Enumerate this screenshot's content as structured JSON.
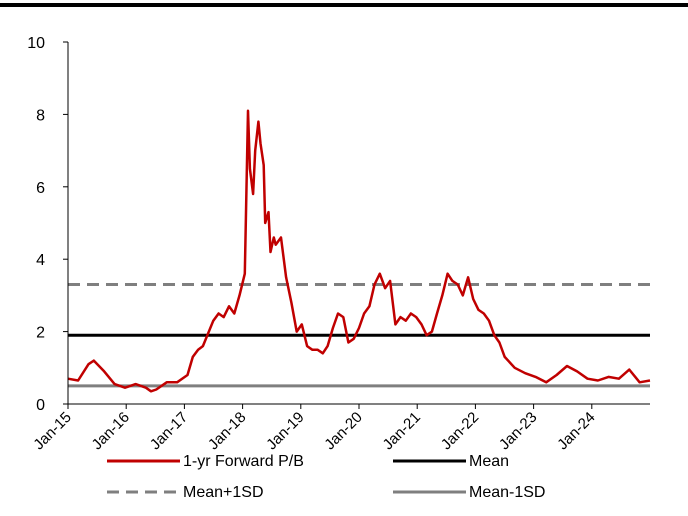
{
  "chart_data": {
    "type": "line",
    "title": "",
    "xlabel": "",
    "ylabel": "",
    "ylim": [
      0,
      10
    ],
    "yticks": [
      "0",
      "2",
      "4",
      "6",
      "8",
      "10"
    ],
    "xticks": [
      "Jan-15",
      "Jan-16",
      "Jan-17",
      "Jan-18",
      "Jan-19",
      "Jan-20",
      "Jan-21",
      "Jan-22",
      "Jan-23",
      "Jan-24"
    ],
    "xrange": [
      "2015-01",
      "2024-05"
    ],
    "grid": false,
    "legend_position": "bottom",
    "series": [
      {
        "name": "1-yr Forward P/B",
        "color": "#c00000",
        "style": "solid",
        "points": [
          [
            "2015-01",
            0.7
          ],
          [
            "2015-03",
            0.65
          ],
          [
            "2015-05",
            1.1
          ],
          [
            "2015-06",
            1.2
          ],
          [
            "2015-08",
            0.9
          ],
          [
            "2015-10",
            0.55
          ],
          [
            "2015-12",
            0.45
          ],
          [
            "2016-02",
            0.55
          ],
          [
            "2016-04",
            0.45
          ],
          [
            "2016-05",
            0.35
          ],
          [
            "2016-06",
            0.4
          ],
          [
            "2016-08",
            0.6
          ],
          [
            "2016-10",
            0.6
          ],
          [
            "2016-12",
            0.8
          ],
          [
            "2017-01",
            1.3
          ],
          [
            "2017-02",
            1.5
          ],
          [
            "2017-03",
            1.6
          ],
          [
            "2017-05",
            2.3
          ],
          [
            "2017-06",
            2.5
          ],
          [
            "2017-07",
            2.4
          ],
          [
            "2017-08",
            2.7
          ],
          [
            "2017-09",
            2.5
          ],
          [
            "2017-10",
            3.0
          ],
          [
            "2017-11",
            3.6
          ],
          [
            "2017-11-20",
            8.1
          ],
          [
            "2017-12",
            6.5
          ],
          [
            "2017-12-20",
            5.8
          ],
          [
            "2018-01",
            7.0
          ],
          [
            "2018-01-20",
            7.8
          ],
          [
            "2018-02",
            7.2
          ],
          [
            "2018-02-20",
            6.6
          ],
          [
            "2018-03",
            5.0
          ],
          [
            "2018-03-20",
            5.3
          ],
          [
            "2018-04",
            4.2
          ],
          [
            "2018-04-20",
            4.6
          ],
          [
            "2018-05",
            4.4
          ],
          [
            "2018-06",
            4.6
          ],
          [
            "2018-07",
            3.5
          ],
          [
            "2018-08",
            2.8
          ],
          [
            "2018-09",
            2.0
          ],
          [
            "2018-10",
            2.2
          ],
          [
            "2018-11",
            1.6
          ],
          [
            "2018-12",
            1.5
          ],
          [
            "2019-01",
            1.5
          ],
          [
            "2019-02",
            1.4
          ],
          [
            "2019-03",
            1.6
          ],
          [
            "2019-04",
            2.1
          ],
          [
            "2019-05",
            2.5
          ],
          [
            "2019-06",
            2.4
          ],
          [
            "2019-07",
            1.7
          ],
          [
            "2019-08",
            1.8
          ],
          [
            "2019-09",
            2.1
          ],
          [
            "2019-10",
            2.5
          ],
          [
            "2019-11",
            2.7
          ],
          [
            "2019-12",
            3.3
          ],
          [
            "2020-01",
            3.6
          ],
          [
            "2020-02",
            3.2
          ],
          [
            "2020-03",
            3.4
          ],
          [
            "2020-04",
            2.2
          ],
          [
            "2020-05",
            2.4
          ],
          [
            "2020-06",
            2.3
          ],
          [
            "2020-07",
            2.5
          ],
          [
            "2020-08",
            2.4
          ],
          [
            "2020-09",
            2.2
          ],
          [
            "2020-10",
            1.9
          ],
          [
            "2020-11",
            2.0
          ],
          [
            "2020-12",
            2.5
          ],
          [
            "2021-01",
            3.0
          ],
          [
            "2021-02",
            3.6
          ],
          [
            "2021-03",
            3.4
          ],
          [
            "2021-04",
            3.3
          ],
          [
            "2021-05",
            3.0
          ],
          [
            "2021-06",
            3.5
          ],
          [
            "2021-07",
            2.9
          ],
          [
            "2021-08",
            2.6
          ],
          [
            "2021-09",
            2.5
          ],
          [
            "2021-10",
            2.3
          ],
          [
            "2021-11",
            1.9
          ],
          [
            "2021-12",
            1.7
          ],
          [
            "2022-01",
            1.3
          ],
          [
            "2022-03",
            1.0
          ],
          [
            "2022-05",
            0.85
          ],
          [
            "2022-07",
            0.75
          ],
          [
            "2022-09",
            0.6
          ],
          [
            "2022-11",
            0.8
          ],
          [
            "2023-01",
            1.05
          ],
          [
            "2023-03",
            0.9
          ],
          [
            "2023-05",
            0.7
          ],
          [
            "2023-07",
            0.65
          ],
          [
            "2023-09",
            0.75
          ],
          [
            "2023-11",
            0.7
          ],
          [
            "2024-01",
            0.95
          ],
          [
            "2024-03",
            0.6
          ],
          [
            "2024-05",
            0.65
          ]
        ]
      },
      {
        "name": "Mean",
        "color": "#000000",
        "style": "solid",
        "value": 1.9
      },
      {
        "name": "Mean+1SD",
        "color": "#7f7f7f",
        "style": "dashed",
        "value": 3.3
      },
      {
        "name": "Mean-1SD",
        "color": "#7f7f7f",
        "style": "solid",
        "value": 0.5
      }
    ]
  }
}
